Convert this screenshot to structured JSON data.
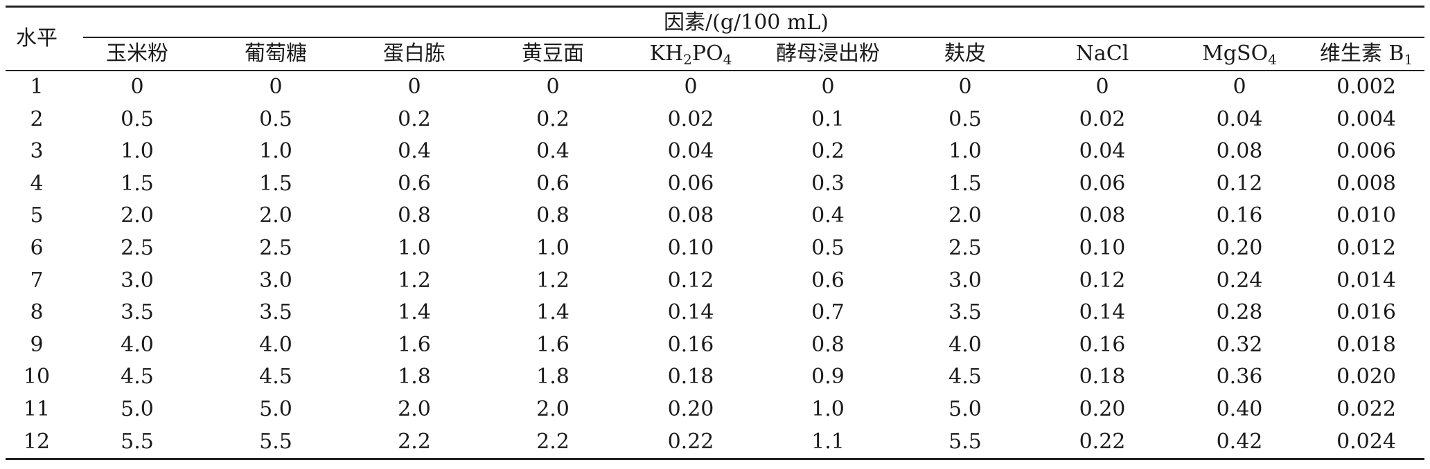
{
  "table": {
    "level_header": "水平",
    "group_header": "因素/(g/100 mL)",
    "columns": [
      {
        "base": "玉米粉"
      },
      {
        "base": "葡萄糖"
      },
      {
        "base": "蛋白胨"
      },
      {
        "base": "黄豆面"
      },
      {
        "base": "KH",
        "sub1": "2",
        "mid": "PO",
        "sub2": "4"
      },
      {
        "base": "酵母浸出粉"
      },
      {
        "base": "麸皮"
      },
      {
        "base": "NaCl"
      },
      {
        "base": "MgSO",
        "sub1": "4"
      },
      {
        "base": "维生素 B",
        "sub1": "1"
      }
    ],
    "rows": [
      [
        "1",
        "0",
        "0",
        "0",
        "0",
        "0",
        "0",
        "0",
        "0",
        "0",
        "0.002"
      ],
      [
        "2",
        "0.5",
        "0.5",
        "0.2",
        "0.2",
        "0.02",
        "0.1",
        "0.5",
        "0.02",
        "0.04",
        "0.004"
      ],
      [
        "3",
        "1.0",
        "1.0",
        "0.4",
        "0.4",
        "0.04",
        "0.2",
        "1.0",
        "0.04",
        "0.08",
        "0.006"
      ],
      [
        "4",
        "1.5",
        "1.5",
        "0.6",
        "0.6",
        "0.06",
        "0.3",
        "1.5",
        "0.06",
        "0.12",
        "0.008"
      ],
      [
        "5",
        "2.0",
        "2.0",
        "0.8",
        "0.8",
        "0.08",
        "0.4",
        "2.0",
        "0.08",
        "0.16",
        "0.010"
      ],
      [
        "6",
        "2.5",
        "2.5",
        "1.0",
        "1.0",
        "0.10",
        "0.5",
        "2.5",
        "0.10",
        "0.20",
        "0.012"
      ],
      [
        "7",
        "3.0",
        "3.0",
        "1.2",
        "1.2",
        "0.12",
        "0.6",
        "3.0",
        "0.12",
        "0.24",
        "0.014"
      ],
      [
        "8",
        "3.5",
        "3.5",
        "1.4",
        "1.4",
        "0.14",
        "0.7",
        "3.5",
        "0.14",
        "0.28",
        "0.016"
      ],
      [
        "9",
        "4.0",
        "4.0",
        "1.6",
        "1.6",
        "0.16",
        "0.8",
        "4.0",
        "0.16",
        "0.32",
        "0.018"
      ],
      [
        "10",
        "4.5",
        "4.5",
        "1.8",
        "1.8",
        "0.18",
        "0.9",
        "4.5",
        "0.18",
        "0.36",
        "0.020"
      ],
      [
        "11",
        "5.0",
        "5.0",
        "2.0",
        "2.0",
        "0.20",
        "1.0",
        "5.0",
        "0.20",
        "0.40",
        "0.022"
      ],
      [
        "12",
        "5.5",
        "5.5",
        "2.2",
        "2.2",
        "0.22",
        "1.1",
        "5.5",
        "0.22",
        "0.42",
        "0.024"
      ]
    ]
  }
}
